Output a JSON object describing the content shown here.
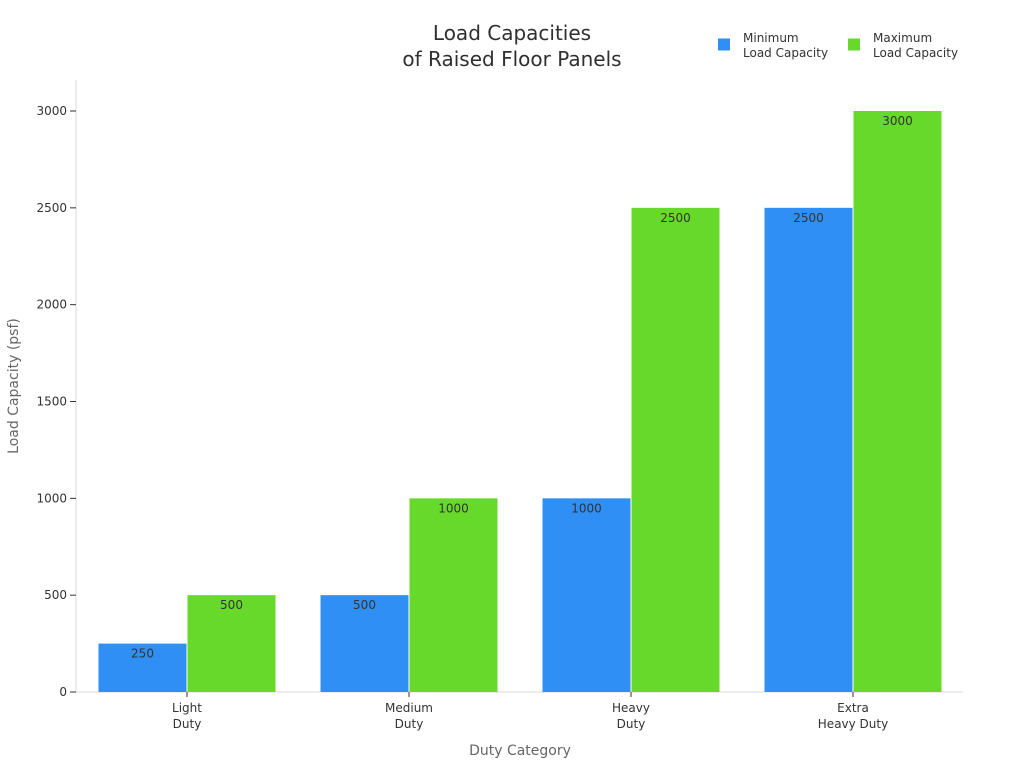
{
  "chart_data": {
    "type": "bar",
    "title": [
      "Load Capacities",
      "of Raised Floor Panels"
    ],
    "xlabel": "Duty Category",
    "ylabel": "Load Capacity (psf)",
    "categories": [
      [
        "Light",
        "Duty"
      ],
      [
        "Medium",
        "Duty"
      ],
      [
        "Heavy",
        "Duty"
      ],
      [
        "Extra",
        "Heavy Duty"
      ]
    ],
    "series": [
      {
        "name": [
          "Minimum",
          "Load Capacity"
        ],
        "values": [
          250,
          500,
          1000,
          2500
        ],
        "color": "#2f8ff5"
      },
      {
        "name": [
          "Maximum",
          "Load Capacity"
        ],
        "values": [
          500,
          1000,
          2500,
          3000
        ],
        "color": "#66d92a"
      }
    ],
    "ylim": [
      0,
      3000
    ],
    "yticks": [
      0,
      500,
      1000,
      1500,
      2000,
      2500,
      3000
    ],
    "grid": false,
    "legend_position": "top-right",
    "data_labels": true
  }
}
